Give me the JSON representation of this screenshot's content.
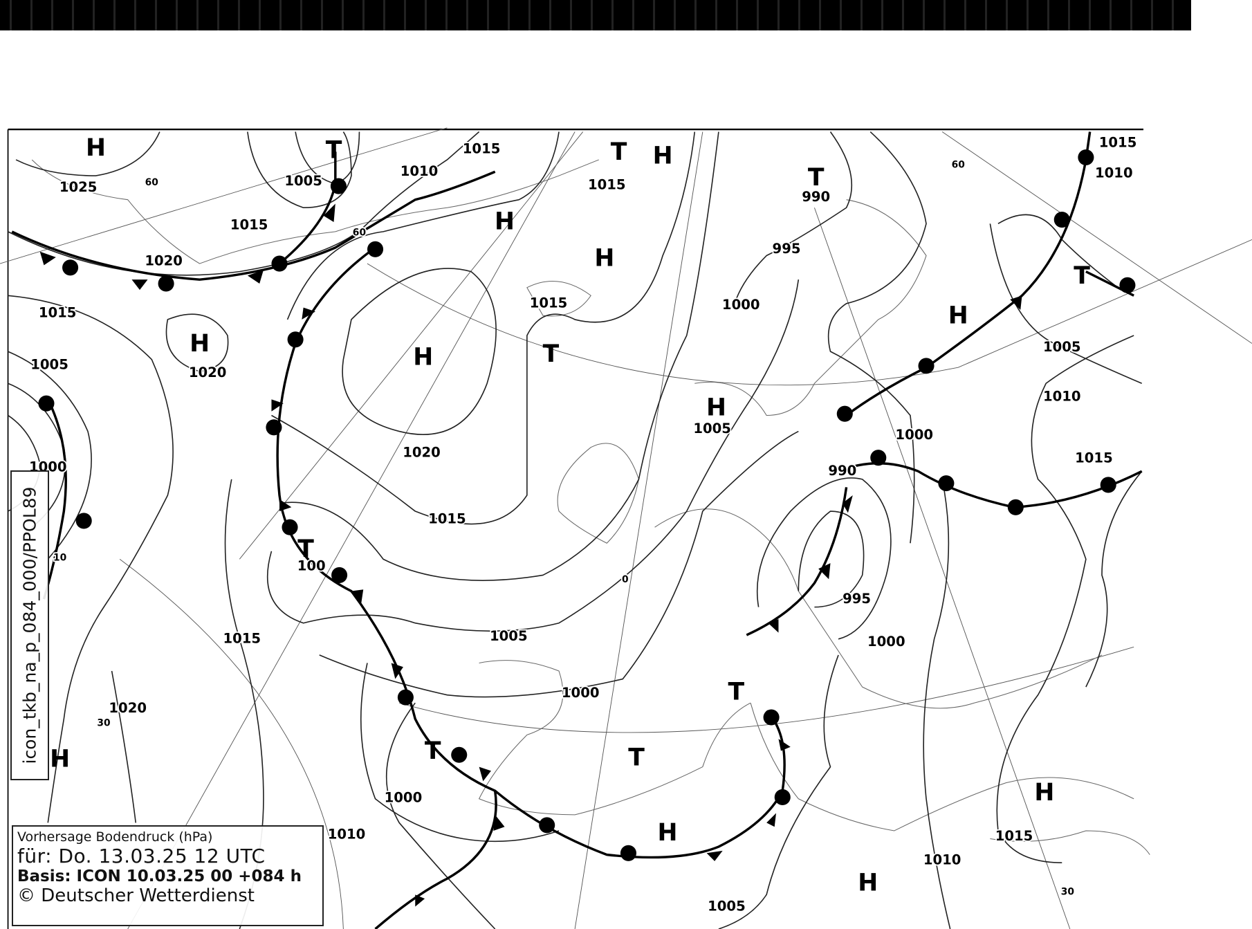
{
  "legend": {
    "title": "Vorhersage Bodendruck (hPa)",
    "valid": "für: Do. 13.03.25  12 UTC",
    "basis": "Basis: ICON  10.03.25 00 +084 h",
    "copyright": "© Deutscher Wetterdienst"
  },
  "product_id": "icon_tkb_na_p_084_000/PPOL89",
  "centers": [
    "H",
    "T",
    "T",
    "H",
    "H",
    "H",
    "T",
    "H",
    "H",
    "T",
    "H",
    "H",
    "H",
    "T",
    "H",
    "T",
    "T",
    "T",
    "T",
    "H",
    "H",
    "H",
    "H",
    "T"
  ],
  "isobar_labels": [
    "1025",
    "60",
    "1005",
    "1010",
    "1015",
    "1015",
    "1015",
    "60",
    "1020",
    "995",
    "990",
    "60",
    "1015",
    "1010",
    "1015",
    "1020",
    "1015",
    "1000",
    "1005",
    "1005",
    "1010",
    "1005",
    "1000",
    "1020",
    "1015",
    "1000",
    "990",
    "1015",
    "10",
    "100",
    "0",
    "995",
    "1015",
    "1005",
    "1000",
    "1000",
    "1020",
    "30",
    "1000",
    "1010",
    "1015",
    "1010",
    "30",
    "1005"
  ],
  "colors": {
    "ink": "#000000",
    "background": "#ffffff"
  }
}
